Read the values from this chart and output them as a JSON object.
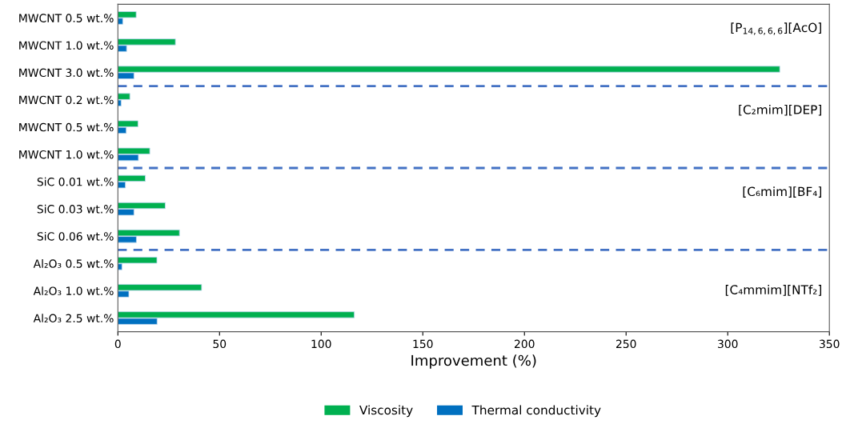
{
  "chart_data": {
    "type": "bar",
    "orientation": "horizontal",
    "xlabel": "Improvement (%)",
    "categories": [
      "MWCNT 0.5 wt.%",
      "MWCNT 1.0 wt.%",
      "MWCNT 3.0 wt.%",
      "MWCNT 0.2 wt.%",
      "MWCNT 0.5 wt.%",
      "MWCNT 1.0 wt.%",
      "SiC 0.01 wt.%",
      "SiC 0.03 wt.%",
      "SiC 0.06 wt.%",
      "Al₂O₃ 0.5 wt.%",
      "Al₂O₃ 1.0 wt.%",
      "Al₂O₃ 2.5 wt.%"
    ],
    "series": [
      {
        "name": "Viscosity",
        "color": "#00b050",
        "values": [
          9.0,
          28.3,
          325.6,
          5.9,
          9.9,
          15.7,
          13.5,
          23.3,
          30.3,
          19.2,
          41.2,
          116.3
        ]
      },
      {
        "name": "Thermal conductivity",
        "color": "#0070c0",
        "values": [
          2.4,
          4.3,
          7.9,
          1.6,
          4.1,
          10.1,
          3.7,
          7.9,
          9.1,
          2.0,
          5.4,
          19.3
        ]
      }
    ],
    "xlim": [
      0,
      350
    ],
    "xticks": [
      0,
      50,
      100,
      150,
      200,
      250,
      300,
      350
    ],
    "annotations": [
      "[P$_{14,6,6,6}$][AcO]",
      "[C₂mim][DEP]",
      "[C₆mim][BF₄]",
      "[C₄mmim][NTf₂]"
    ],
    "grid": false,
    "legend": "bottom"
  }
}
